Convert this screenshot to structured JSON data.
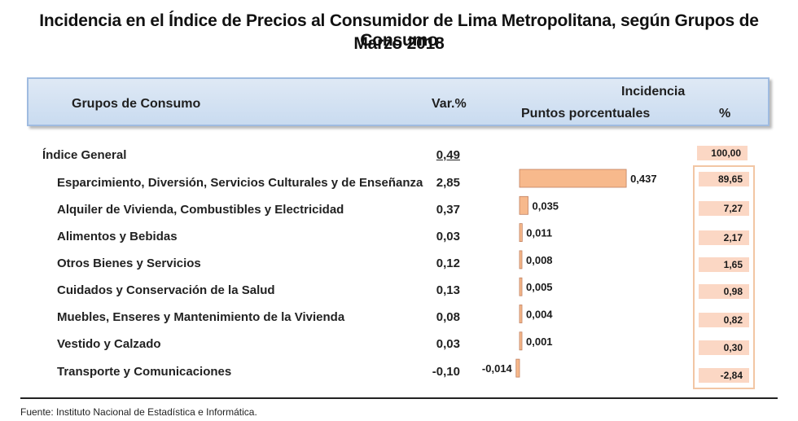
{
  "title_line1": "Incidencia en el Índice de Precios al Consumidor de  Lima Metropolitana, según Grupos de Consumo",
  "title_line2": "Marzo 2018",
  "header": {
    "grupos": "Grupos de Consumo",
    "var": "Var.%",
    "incidencia": "Incidencia",
    "puntos": "Puntos porcentuales",
    "pct": "%"
  },
  "general": {
    "label": "Índice General",
    "var": "0,49",
    "pct": "100,00"
  },
  "source": "Fuente: Instituto Nacional de Estadística e Informática.",
  "chart_data": {
    "type": "bar",
    "orientation": "horizontal",
    "title": "Incidencia en el Índice de Precios al Consumidor de  Lima Metropolitana, según Grupos de Consumo",
    "subtitle": "Marzo 2018",
    "categories": [
      "Esparcimiento, Diversión, Servicios Culturales y de Enseñanza",
      "Alquiler de Vivienda, Combustibles y Electricidad",
      "Alimentos y Bebidas",
      "Otros  Bienes y Servicios",
      "Cuidados y Conservación de la Salud",
      "Muebles, Enseres y Mantenimiento de la Vivienda",
      "Vestido y Calzado",
      "Transporte y Comunicaciones"
    ],
    "var_pct": [
      "2,85",
      "0,37",
      "0,03",
      "0,12",
      "0,13",
      "0,08",
      "0,03",
      "-0,10"
    ],
    "values": [
      0.437,
      0.035,
      0.011,
      0.008,
      0.005,
      0.004,
      0.001,
      -0.014
    ],
    "value_labels": [
      "0,437",
      "0,035",
      "0,011",
      "0,008",
      "0,005",
      "0,004",
      "0,001",
      "-0,014"
    ],
    "incidence_pct": [
      "89,65",
      "7,27",
      "2,17",
      "1,65",
      "0,98",
      "0,82",
      "0,30",
      "-2,84"
    ],
    "xlabel": "Puntos porcentuales",
    "ylabel": "Grupos de Consumo",
    "bar_color": "#f7b98c"
  }
}
